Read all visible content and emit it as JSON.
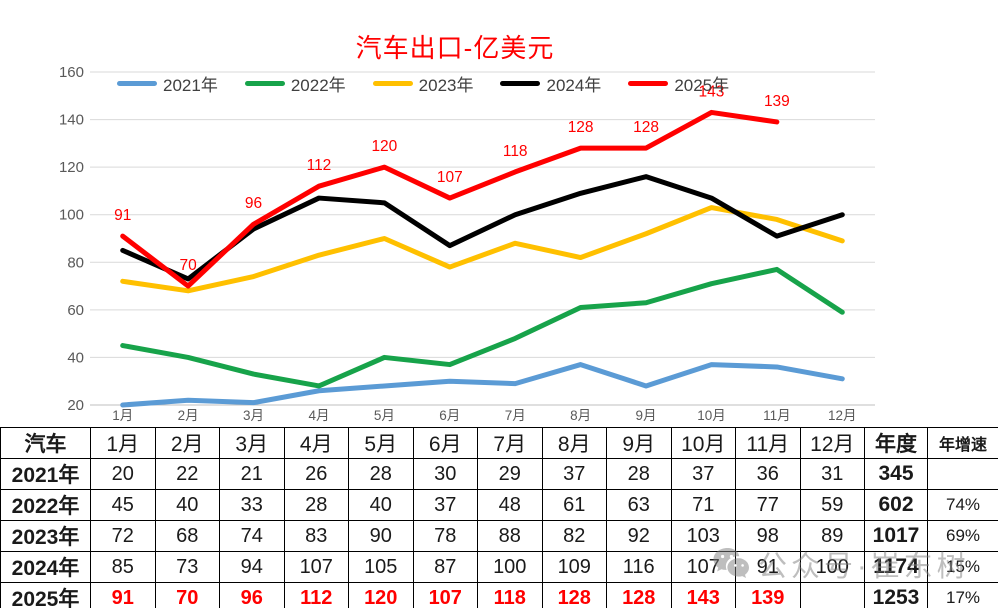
{
  "chart_data": {
    "type": "line",
    "title": "汽车出口-亿美元",
    "title_color": "#FF0000",
    "x_categories": [
      "1月",
      "2月",
      "3月",
      "4月",
      "5月",
      "6月",
      "7月",
      "8月",
      "9月",
      "10月",
      "11月",
      "12月"
    ],
    "ylim": [
      20,
      160
    ],
    "y_ticks": [
      160,
      140,
      120,
      100,
      80,
      60,
      40,
      20
    ],
    "grid": true,
    "legend_position": "top",
    "axis_text_color": "#595959",
    "series": [
      {
        "name": "2021年",
        "color": "#5B9BD5",
        "values": [
          20,
          22,
          21,
          26,
          28,
          30,
          29,
          37,
          28,
          37,
          36,
          31
        ]
      },
      {
        "name": "2022年",
        "color": "#17A34A",
        "values": [
          45,
          40,
          33,
          28,
          40,
          37,
          48,
          61,
          63,
          71,
          77,
          59
        ]
      },
      {
        "name": "2023年",
        "color": "#FFC000",
        "values": [
          72,
          68,
          74,
          83,
          90,
          78,
          88,
          82,
          92,
          103,
          98,
          89
        ]
      },
      {
        "name": "2024年",
        "color": "#000000",
        "values": [
          85,
          73,
          94,
          107,
          105,
          87,
          100,
          109,
          116,
          107,
          91,
          100
        ]
      },
      {
        "name": "2025年",
        "color": "#FF0000",
        "values": [
          91,
          70,
          96,
          112,
          120,
          107,
          118,
          128,
          128,
          143,
          139,
          null
        ],
        "show_labels": true
      }
    ]
  },
  "table": {
    "header": [
      "汽车",
      "1月",
      "2月",
      "3月",
      "4月",
      "5月",
      "6月",
      "7月",
      "8月",
      "9月",
      "10月",
      "11月",
      "12月",
      "年度",
      "年增速"
    ],
    "rows": [
      {
        "label": "2021年",
        "values": [
          "20",
          "22",
          "21",
          "26",
          "28",
          "30",
          "29",
          "37",
          "28",
          "37",
          "36",
          "31"
        ],
        "annual": "345",
        "growth": "",
        "highlight": false
      },
      {
        "label": "2022年",
        "values": [
          "45",
          "40",
          "33",
          "28",
          "40",
          "37",
          "48",
          "61",
          "63",
          "71",
          "77",
          "59"
        ],
        "annual": "602",
        "growth": "74%",
        "highlight": false
      },
      {
        "label": "2023年",
        "values": [
          "72",
          "68",
          "74",
          "83",
          "90",
          "78",
          "88",
          "82",
          "92",
          "103",
          "98",
          "89"
        ],
        "annual": "1017",
        "growth": "69%",
        "highlight": false
      },
      {
        "label": "2024年",
        "values": [
          "85",
          "73",
          "94",
          "107",
          "105",
          "87",
          "100",
          "109",
          "116",
          "107",
          "91",
          "100"
        ],
        "annual": "1174",
        "growth": "15%",
        "highlight": false
      },
      {
        "label": "2025年",
        "values": [
          "91",
          "70",
          "96",
          "112",
          "120",
          "107",
          "118",
          "128",
          "128",
          "143",
          "139",
          ""
        ],
        "annual": "1253",
        "growth": "17%",
        "highlight": true
      }
    ],
    "highlight_color": "#FF0000"
  },
  "watermark": {
    "icon": "wechat-icon",
    "text": "公众号·崔东树"
  }
}
